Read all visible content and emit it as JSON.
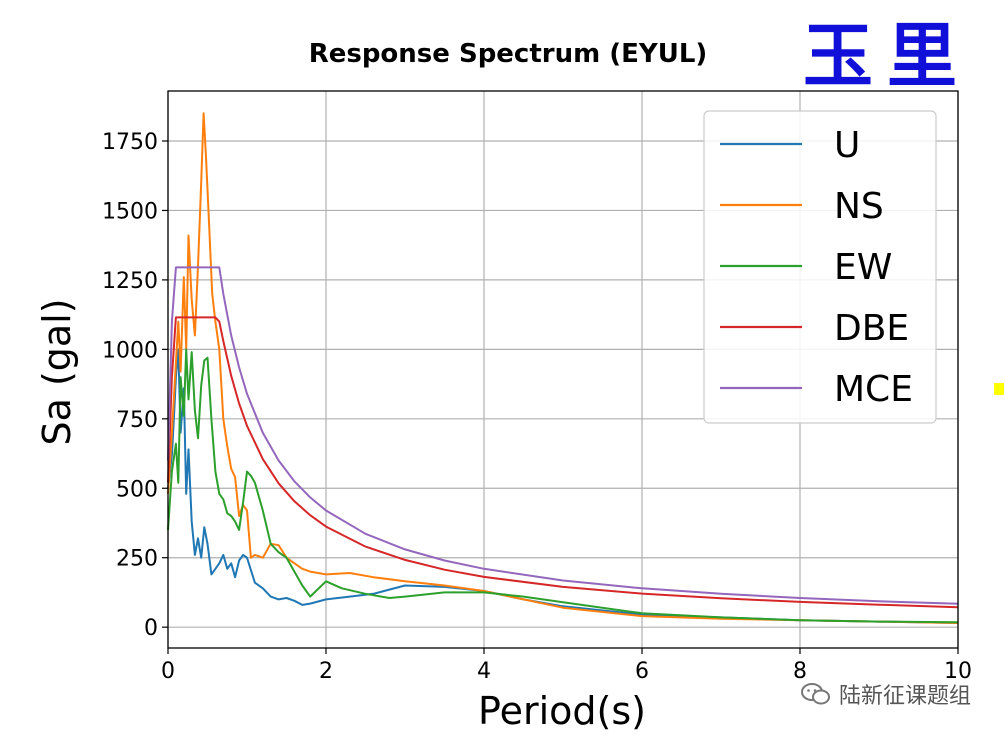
{
  "stamp_text": "玉里",
  "watermark": {
    "text": "陆新征课题组",
    "icon": "wechat-icon"
  },
  "chart_data": {
    "type": "line",
    "title": "Response Spectrum (EYUL)",
    "xlabel": "Period(s)",
    "ylabel": "Sa (gal)",
    "xlim": [
      0,
      10
    ],
    "ylim": [
      -75,
      1930
    ],
    "xticks": [
      0,
      2,
      4,
      6,
      8,
      10
    ],
    "yticks": [
      0,
      250,
      500,
      750,
      1000,
      1250,
      1500,
      1750
    ],
    "grid": true,
    "legend_position": "top-right",
    "series": [
      {
        "name": "U",
        "color": "#1f77b4",
        "x": [
          0,
          0.05,
          0.08,
          0.1,
          0.13,
          0.16,
          0.2,
          0.23,
          0.26,
          0.3,
          0.34,
          0.38,
          0.42,
          0.46,
          0.5,
          0.55,
          0.6,
          0.65,
          0.7,
          0.75,
          0.8,
          0.85,
          0.9,
          0.95,
          1.0,
          1.1,
          1.2,
          1.3,
          1.4,
          1.5,
          1.6,
          1.7,
          1.8,
          2.0,
          2.3,
          2.6,
          3.0,
          3.5,
          4.0,
          4.5,
          5.0,
          6.0,
          7.0,
          8.0,
          9.0,
          10.0
        ],
        "y": [
          500,
          620,
          780,
          900,
          1000,
          700,
          860,
          480,
          640,
          380,
          260,
          320,
          250,
          360,
          300,
          190,
          210,
          230,
          260,
          210,
          230,
          180,
          240,
          260,
          250,
          160,
          140,
          110,
          100,
          105,
          95,
          80,
          85,
          100,
          110,
          120,
          150,
          145,
          130,
          100,
          75,
          45,
          35,
          25,
          20,
          15
        ]
      },
      {
        "name": "NS",
        "color": "#ff7f0e",
        "x": [
          0,
          0.05,
          0.1,
          0.13,
          0.16,
          0.2,
          0.23,
          0.26,
          0.3,
          0.34,
          0.38,
          0.42,
          0.45,
          0.48,
          0.52,
          0.56,
          0.6,
          0.65,
          0.7,
          0.75,
          0.8,
          0.85,
          0.9,
          0.95,
          1.0,
          1.05,
          1.1,
          1.2,
          1.3,
          1.4,
          1.5,
          1.6,
          1.7,
          1.8,
          2.0,
          2.3,
          2.6,
          3.0,
          3.5,
          4.0,
          4.5,
          5.0,
          6.0,
          7.0,
          8.0,
          9.0,
          10.0
        ],
        "y": [
          480,
          700,
          950,
          1100,
          920,
          1260,
          1000,
          1410,
          1180,
          1050,
          1300,
          1600,
          1850,
          1700,
          1450,
          1200,
          1100,
          1000,
          750,
          650,
          570,
          540,
          400,
          440,
          420,
          250,
          260,
          250,
          300,
          295,
          250,
          230,
          210,
          200,
          190,
          195,
          180,
          165,
          150,
          130,
          100,
          70,
          40,
          30,
          25,
          20,
          15
        ]
      },
      {
        "name": "EW",
        "color": "#2ca02c",
        "x": [
          0,
          0.05,
          0.1,
          0.13,
          0.16,
          0.2,
          0.23,
          0.26,
          0.3,
          0.34,
          0.38,
          0.42,
          0.46,
          0.5,
          0.55,
          0.6,
          0.65,
          0.7,
          0.75,
          0.8,
          0.85,
          0.9,
          0.95,
          1.0,
          1.05,
          1.1,
          1.2,
          1.3,
          1.4,
          1.5,
          1.6,
          1.7,
          1.8,
          2.0,
          2.2,
          2.5,
          2.8,
          3.0,
          3.5,
          4.0,
          4.5,
          5.0,
          6.0,
          7.0,
          8.0,
          9.0,
          10.0
        ],
        "y": [
          350,
          560,
          660,
          520,
          900,
          760,
          1000,
          820,
          990,
          780,
          680,
          870,
          960,
          970,
          750,
          560,
          480,
          460,
          410,
          400,
          380,
          350,
          450,
          560,
          545,
          520,
          420,
          300,
          270,
          250,
          200,
          150,
          110,
          165,
          140,
          120,
          105,
          110,
          125,
          125,
          110,
          90,
          50,
          35,
          25,
          20,
          18
        ]
      },
      {
        "name": "DBE",
        "color": "#d62728",
        "x": [
          0,
          0.05,
          0.1,
          0.12,
          0.2,
          0.3,
          0.4,
          0.5,
          0.55,
          0.6,
          0.65,
          0.7,
          0.8,
          0.9,
          1.0,
          1.2,
          1.4,
          1.6,
          1.8,
          2.0,
          2.5,
          3.0,
          3.5,
          4.0,
          5.0,
          6.0,
          7.0,
          8.0,
          9.0,
          10.0
        ],
        "y": [
          520,
          900,
          1115,
          1115,
          1115,
          1115,
          1115,
          1115,
          1115,
          1115,
          1100,
          1030,
          905,
          805,
          725,
          605,
          518,
          453,
          403,
          362,
          290,
          242,
          207,
          181,
          145,
          121,
          104,
          91,
          81,
          72
        ]
      },
      {
        "name": "MCE",
        "color": "#9467bd",
        "x": [
          0,
          0.05,
          0.1,
          0.12,
          0.2,
          0.3,
          0.4,
          0.5,
          0.6,
          0.65,
          0.7,
          0.8,
          0.9,
          1.0,
          1.2,
          1.4,
          1.6,
          1.8,
          2.0,
          2.5,
          3.0,
          3.5,
          4.0,
          5.0,
          6.0,
          7.0,
          8.0,
          9.0,
          10.0
        ],
        "y": [
          600,
          1100,
          1295,
          1295,
          1295,
          1295,
          1295,
          1295,
          1295,
          1295,
          1200,
          1050,
          935,
          840,
          700,
          600,
          525,
          467,
          420,
          336,
          280,
          240,
          210,
          168,
          140,
          120,
          105,
          93,
          84
        ]
      }
    ]
  }
}
